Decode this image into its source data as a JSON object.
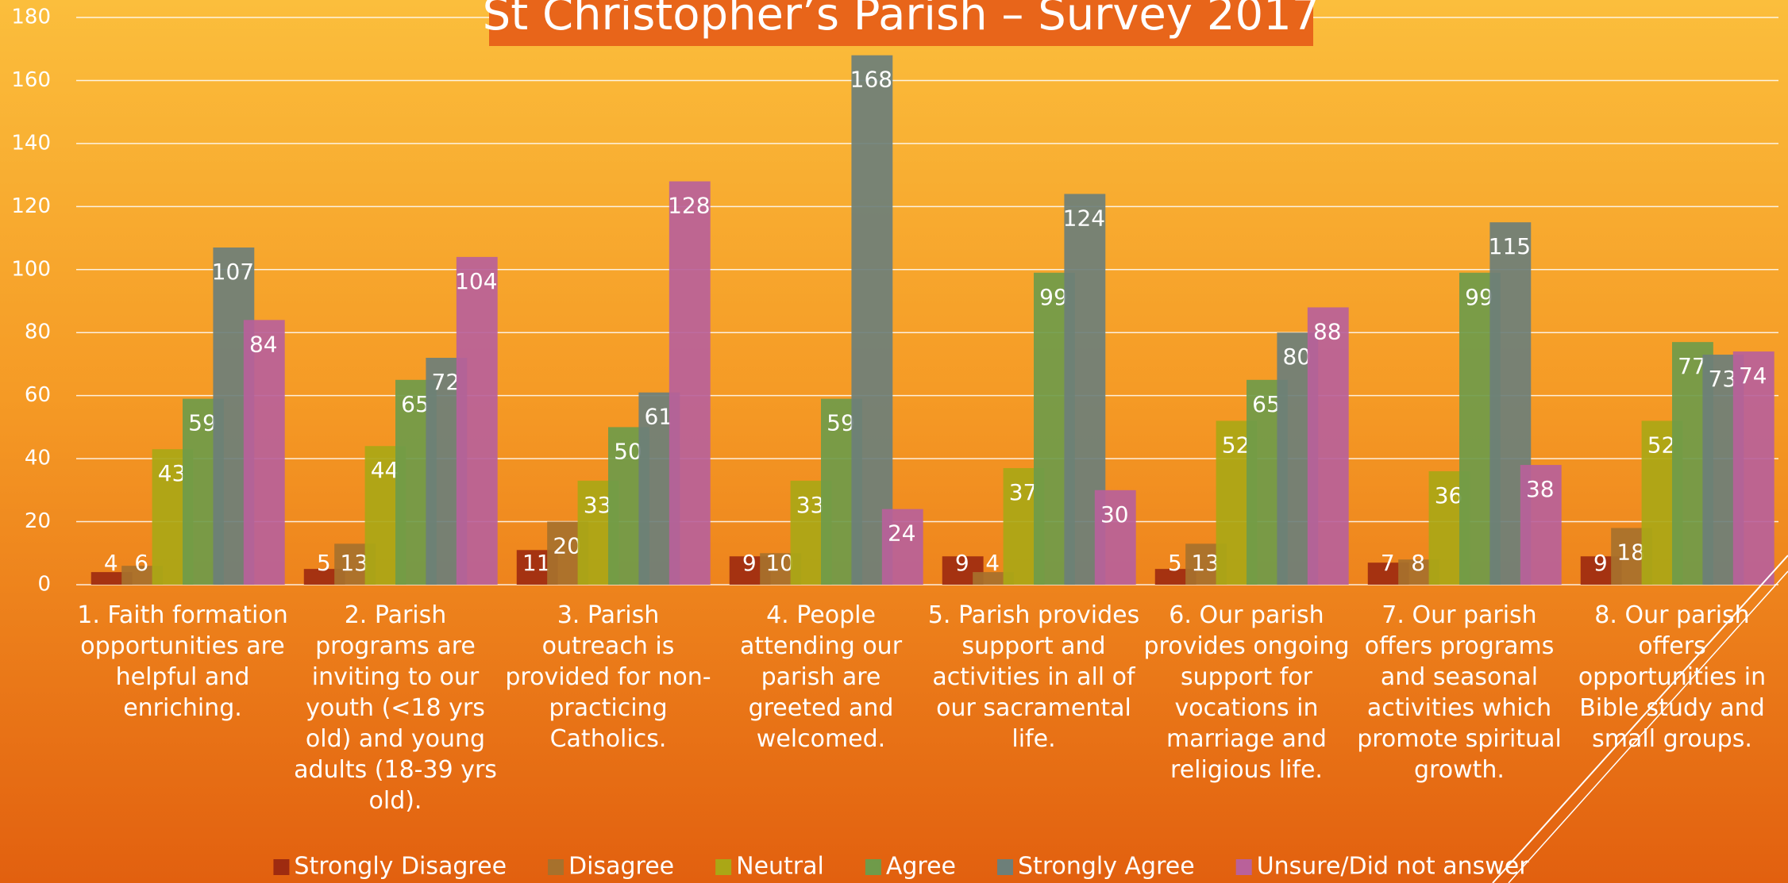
{
  "chart_data": {
    "type": "bar",
    "title": "St Christopher’s Parish – Survey 2017",
    "categories": [
      "1. Faith formation opportunities are helpful and enriching.",
      "2. Parish programs are inviting to our youth (<18 yrs old) and young adults (18-39 yrs old).",
      "3. Parish outreach is provided for non-practicing Catholics.",
      "4. People attending our parish are greeted and welcomed.",
      "5. Parish provides support and activities in all of our sacramental life.",
      "6. Our parish provides ongoing support for vocations in marriage and religious life.",
      "7. Our parish offers programs and seasonal activities which promote spiritual growth.",
      "8. Our parish offers opportunities in Bible study and small groups."
    ],
    "series": [
      {
        "name": "Strongly Disagree",
        "color": "#9e2b10",
        "values": [
          4,
          5,
          11,
          9,
          9,
          5,
          7,
          9
        ]
      },
      {
        "name": "Disagree",
        "color": "#a7712c",
        "values": [
          6,
          13,
          20,
          10,
          4,
          13,
          8,
          18
        ]
      },
      {
        "name": "Neutral",
        "color": "#aaa716",
        "values": [
          43,
          44,
          33,
          33,
          37,
          52,
          36,
          52
        ]
      },
      {
        "name": "Agree",
        "color": "#6f9b4a",
        "values": [
          59,
          65,
          50,
          59,
          99,
          65,
          99,
          77
        ]
      },
      {
        "name": "Strongly Agree",
        "color": "#6d7f79",
        "values": [
          107,
          72,
          61,
          168,
          124,
          80,
          115,
          73
        ]
      },
      {
        "name": "Unsure/Did not answer",
        "color": "#b9619a",
        "values": [
          84,
          104,
          128,
          24,
          30,
          88,
          38,
          74
        ]
      }
    ],
    "ylim": [
      0,
      180
    ],
    "yticks": [
      0,
      20,
      40,
      60,
      80,
      100,
      120,
      140,
      160,
      180
    ],
    "grid": true,
    "legend": "bottom"
  }
}
